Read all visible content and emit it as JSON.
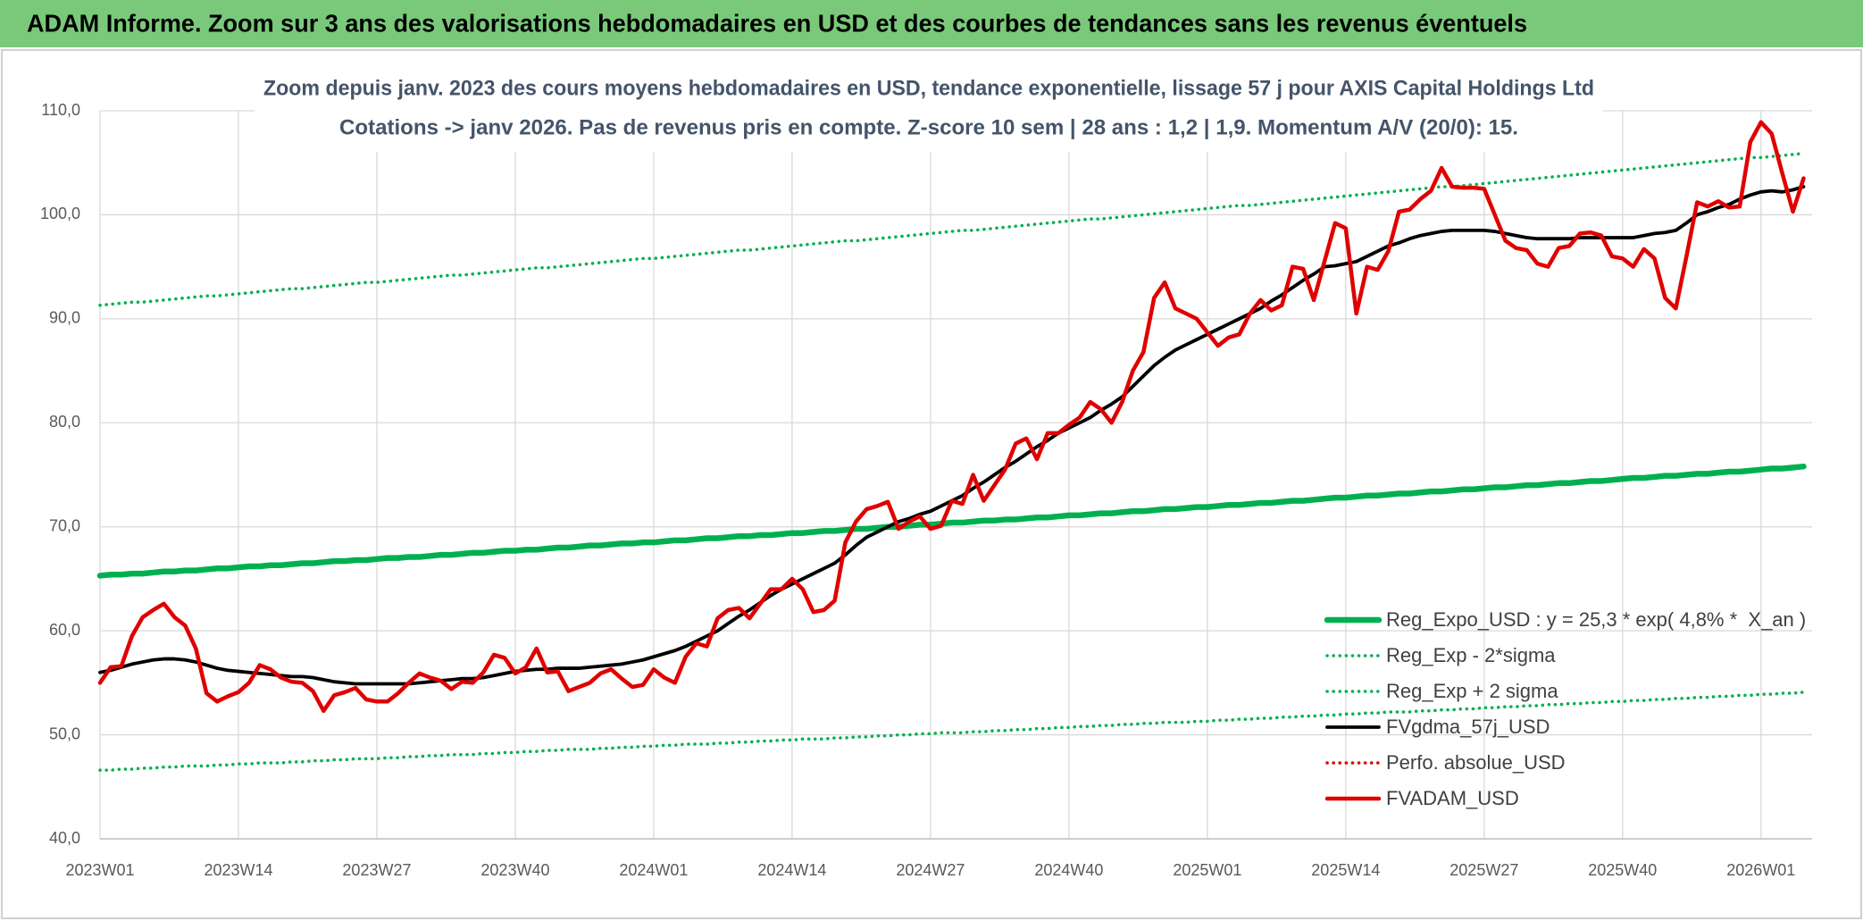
{
  "header": {
    "title": "ADAM Informe. Zoom sur 3 ans des valorisations hebdomadaires en USD et des courbes de tendances sans les revenus éventuels"
  },
  "chart_data": {
    "type": "line",
    "title": "Zoom depuis janv. 2023 des cours moyens hebdomadaires en USD, tendance exponentielle, lissage 57 j pour AXIS Capital Holdings Ltd",
    "subtitle": "Cotations -> janv 2026. Pas de revenus pris en compte. Z-score 10 sem | 28 ans : 1,2 | 1,9. Momentum A/V (20/0): 15.",
    "categories": [
      "2023W01",
      null,
      null,
      null,
      null,
      null,
      null,
      null,
      null,
      null,
      null,
      null,
      null,
      "2023W14",
      null,
      null,
      null,
      null,
      null,
      null,
      null,
      null,
      null,
      null,
      null,
      null,
      "2023W27",
      null,
      null,
      null,
      null,
      null,
      null,
      null,
      null,
      null,
      null,
      null,
      null,
      "2023W40",
      null,
      null,
      null,
      null,
      null,
      null,
      null,
      null,
      null,
      null,
      null,
      null,
      "2024W01",
      null,
      null,
      null,
      null,
      null,
      null,
      null,
      null,
      null,
      null,
      null,
      null,
      "2024W14",
      null,
      null,
      null,
      null,
      null,
      null,
      null,
      null,
      null,
      null,
      null,
      null,
      "2024W27",
      null,
      null,
      null,
      null,
      null,
      null,
      null,
      null,
      null,
      null,
      null,
      null,
      "2024W40",
      null,
      null,
      null,
      null,
      null,
      null,
      null,
      null,
      null,
      null,
      null,
      null,
      "2025W01",
      null,
      null,
      null,
      null,
      null,
      null,
      null,
      null,
      null,
      null,
      null,
      null,
      "2025W14",
      null,
      null,
      null,
      null,
      null,
      null,
      null,
      null,
      null,
      null,
      null,
      null,
      "2025W27",
      null,
      null,
      null,
      null,
      null,
      null,
      null,
      null,
      null,
      null,
      null,
      null,
      "2025W40",
      null,
      null,
      null,
      null,
      null,
      null,
      null,
      null,
      null,
      null,
      null,
      null,
      "2026W01",
      null,
      null,
      null,
      null
    ],
    "ylim": [
      40,
      110
    ],
    "yticks": [
      {
        "value": 40,
        "label": "40,0"
      },
      {
        "value": 50,
        "label": "50,0"
      },
      {
        "value": 60,
        "label": "60,0"
      },
      {
        "value": 70,
        "label": "70,0"
      },
      {
        "value": 80,
        "label": "80,0"
      },
      {
        "value": 90,
        "label": "90,0"
      },
      {
        "value": 100,
        "label": "100,0"
      },
      {
        "value": 110,
        "label": "110,0"
      }
    ],
    "grid": true,
    "legend": "lower right",
    "series": [
      {
        "name": "Reg_Expo_USD : y = 25,3 * exp( 4,8% *  X_an )",
        "color": "#00b050",
        "line_style": "thick",
        "values": [
          65.3,
          65.4,
          65.4,
          65.5,
          65.5,
          65.6,
          65.7,
          65.7,
          65.8,
          65.8,
          65.9,
          66.0,
          66.0,
          66.1,
          66.2,
          66.2,
          66.3,
          66.3,
          66.4,
          66.5,
          66.5,
          66.6,
          66.7,
          66.7,
          66.8,
          66.8,
          66.9,
          67.0,
          67.0,
          67.1,
          67.1,
          67.2,
          67.3,
          67.3,
          67.4,
          67.5,
          67.5,
          67.6,
          67.7,
          67.7,
          67.8,
          67.8,
          67.9,
          68.0,
          68.0,
          68.1,
          68.2,
          68.2,
          68.3,
          68.4,
          68.4,
          68.5,
          68.5,
          68.6,
          68.7,
          68.7,
          68.8,
          68.9,
          68.9,
          69.0,
          69.1,
          69.1,
          69.2,
          69.2,
          69.3,
          69.4,
          69.4,
          69.5,
          69.6,
          69.6,
          69.7,
          69.8,
          69.8,
          69.9,
          70.0,
          70.0,
          70.1,
          70.2,
          70.2,
          70.3,
          70.4,
          70.4,
          70.5,
          70.6,
          70.6,
          70.7,
          70.7,
          70.8,
          70.9,
          70.9,
          71.0,
          71.1,
          71.1,
          71.2,
          71.3,
          71.3,
          71.4,
          71.5,
          71.5,
          71.6,
          71.7,
          71.7,
          71.8,
          71.9,
          71.9,
          72.0,
          72.1,
          72.1,
          72.2,
          72.3,
          72.3,
          72.4,
          72.5,
          72.5,
          72.6,
          72.7,
          72.8,
          72.8,
          72.9,
          73.0,
          73.0,
          73.1,
          73.2,
          73.2,
          73.3,
          73.4,
          73.4,
          73.5,
          73.6,
          73.6,
          73.7,
          73.8,
          73.8,
          73.9,
          74.0,
          74.0,
          74.1,
          74.2,
          74.2,
          74.3,
          74.4,
          74.4,
          74.5,
          74.6,
          74.7,
          74.7,
          74.8,
          74.9,
          74.9,
          75.0,
          75.1,
          75.1,
          75.2,
          75.3,
          75.3,
          75.4,
          75.5,
          75.6,
          75.6,
          75.7,
          75.8
        ]
      },
      {
        "name": "Reg_Exp - 2*sigma",
        "color": "#00b050",
        "line_style": "dotted",
        "values": [
          46.6,
          46.6,
          46.7,
          46.7,
          46.8,
          46.8,
          46.9,
          46.9,
          47.0,
          47.0,
          47.0,
          47.1,
          47.1,
          47.2,
          47.2,
          47.3,
          47.3,
          47.3,
          47.4,
          47.4,
          47.5,
          47.5,
          47.6,
          47.6,
          47.7,
          47.7,
          47.7,
          47.8,
          47.8,
          47.9,
          47.9,
          48.0,
          48.0,
          48.1,
          48.1,
          48.1,
          48.2,
          48.2,
          48.3,
          48.3,
          48.4,
          48.4,
          48.5,
          48.5,
          48.6,
          48.6,
          48.6,
          48.7,
          48.7,
          48.8,
          48.8,
          48.9,
          48.9,
          49.0,
          49.0,
          49.1,
          49.1,
          49.1,
          49.2,
          49.2,
          49.3,
          49.3,
          49.4,
          49.4,
          49.5,
          49.5,
          49.6,
          49.6,
          49.6,
          49.7,
          49.7,
          49.8,
          49.8,
          49.9,
          49.9,
          50.0,
          50.0,
          50.1,
          50.1,
          50.2,
          50.2,
          50.2,
          50.3,
          50.3,
          50.4,
          50.4,
          50.5,
          50.5,
          50.6,
          50.6,
          50.7,
          50.7,
          50.8,
          50.8,
          50.9,
          50.9,
          51.0,
          51.0,
          51.1,
          51.1,
          51.2,
          51.2,
          51.2,
          51.3,
          51.3,
          51.4,
          51.4,
          51.5,
          51.5,
          51.6,
          51.6,
          51.7,
          51.7,
          51.8,
          51.8,
          51.9,
          51.9,
          52.0,
          52.0,
          52.1,
          52.1,
          52.2,
          52.2,
          52.2,
          52.3,
          52.3,
          52.4,
          52.4,
          52.5,
          52.5,
          52.6,
          52.6,
          52.7,
          52.7,
          52.8,
          52.8,
          52.9,
          52.9,
          53.0,
          53.0,
          53.1,
          53.1,
          53.2,
          53.2,
          53.3,
          53.3,
          53.4,
          53.4,
          53.5,
          53.5,
          53.6,
          53.6,
          53.7,
          53.7,
          53.8,
          53.8,
          53.9,
          53.9,
          54.0,
          54.0,
          54.1
        ]
      },
      {
        "name": "Reg_Exp + 2 sigma",
        "color": "#00b050",
        "line_style": "dotted",
        "values": [
          91.3,
          91.4,
          91.5,
          91.6,
          91.6,
          91.7,
          91.8,
          91.9,
          92.0,
          92.1,
          92.2,
          92.2,
          92.3,
          92.4,
          92.5,
          92.6,
          92.7,
          92.8,
          92.9,
          92.9,
          93.0,
          93.1,
          93.2,
          93.3,
          93.4,
          93.5,
          93.5,
          93.6,
          93.7,
          93.8,
          93.9,
          94.0,
          94.1,
          94.2,
          94.2,
          94.3,
          94.4,
          94.5,
          94.6,
          94.7,
          94.8,
          94.9,
          94.9,
          95.0,
          95.1,
          95.2,
          95.3,
          95.4,
          95.5,
          95.6,
          95.7,
          95.8,
          95.8,
          95.9,
          96.0,
          96.1,
          96.2,
          96.3,
          96.4,
          96.5,
          96.6,
          96.6,
          96.7,
          96.8,
          96.9,
          97.0,
          97.1,
          97.2,
          97.3,
          97.4,
          97.5,
          97.5,
          97.6,
          97.7,
          97.8,
          97.9,
          98.0,
          98.1,
          98.2,
          98.3,
          98.4,
          98.5,
          98.5,
          98.6,
          98.7,
          98.8,
          98.9,
          99.0,
          99.1,
          99.2,
          99.3,
          99.4,
          99.5,
          99.6,
          99.6,
          99.7,
          99.8,
          99.9,
          100.0,
          100.1,
          100.2,
          100.3,
          100.4,
          100.5,
          100.6,
          100.7,
          100.8,
          100.9,
          100.9,
          101.0,
          101.1,
          101.2,
          101.3,
          101.4,
          101.5,
          101.6,
          101.7,
          101.8,
          101.9,
          102.0,
          102.1,
          102.2,
          102.3,
          102.4,
          102.5,
          102.6,
          102.7,
          102.7,
          102.8,
          102.9,
          103.0,
          103.1,
          103.2,
          103.3,
          103.4,
          103.5,
          103.6,
          103.7,
          103.8,
          103.9,
          104.0,
          104.1,
          104.2,
          104.3,
          104.4,
          104.5,
          104.6,
          104.7,
          104.8,
          104.9,
          105.0,
          105.1,
          105.2,
          105.3,
          105.4,
          105.5,
          105.5,
          105.6,
          105.7,
          105.8,
          105.9
        ]
      },
      {
        "name": "FVgdma_57j_USD",
        "color": "#000000",
        "line_style": "solid",
        "values": [
          56.0,
          56.2,
          56.5,
          56.8,
          57.0,
          57.2,
          57.3,
          57.3,
          57.2,
          57.0,
          56.7,
          56.4,
          56.2,
          56.1,
          56.0,
          55.9,
          55.8,
          55.7,
          55.6,
          55.6,
          55.5,
          55.3,
          55.1,
          55.0,
          54.9,
          54.9,
          54.9,
          54.9,
          54.9,
          54.9,
          55.0,
          55.1,
          55.2,
          55.3,
          55.4,
          55.4,
          55.5,
          55.7,
          55.9,
          56.1,
          56.2,
          56.3,
          56.3,
          56.4,
          56.4,
          56.4,
          56.5,
          56.6,
          56.7,
          56.8,
          57.0,
          57.2,
          57.5,
          57.8,
          58.1,
          58.5,
          59.0,
          59.5,
          60.0,
          60.7,
          61.4,
          62.0,
          62.7,
          63.4,
          64.0,
          64.5,
          65.0,
          65.5,
          66.0,
          66.5,
          67.3,
          68.2,
          69.0,
          69.5,
          70.0,
          70.5,
          70.8,
          71.2,
          71.5,
          72.0,
          72.5,
          73.0,
          73.7,
          74.3,
          75.0,
          75.7,
          76.3,
          77.0,
          77.7,
          78.3,
          79.0,
          79.5,
          80.0,
          80.5,
          81.2,
          81.8,
          82.5,
          83.5,
          84.5,
          85.5,
          86.3,
          87.0,
          87.5,
          88.0,
          88.5,
          89.0,
          89.5,
          90.0,
          90.5,
          91.0,
          91.7,
          92.3,
          93.0,
          93.7,
          94.3,
          95.0,
          95.1,
          95.3,
          95.5,
          96.0,
          96.5,
          97.0,
          97.3,
          97.7,
          98.0,
          98.2,
          98.4,
          98.5,
          98.5,
          98.5,
          98.5,
          98.4,
          98.2,
          98.0,
          97.8,
          97.7,
          97.7,
          97.7,
          97.7,
          97.8,
          97.8,
          97.8,
          97.8,
          97.8,
          97.8,
          98.0,
          98.2,
          98.3,
          98.5,
          99.2,
          100.0,
          100.3,
          100.7,
          101.0,
          101.5,
          101.9,
          102.2,
          102.3,
          102.2,
          102.4,
          102.7
        ]
      },
      {
        "name": "Perfo. absolue_USD",
        "color": "#e00000",
        "line_style": "dotted",
        "values": [
          null,
          null,
          null,
          null,
          null,
          null,
          null,
          null,
          null,
          null,
          null,
          null,
          null,
          null,
          null,
          null,
          null,
          null,
          null,
          null,
          null,
          null,
          null,
          null,
          null,
          null,
          null,
          null,
          null,
          null,
          null,
          null,
          null,
          null,
          null,
          null,
          null,
          null,
          null,
          null,
          null,
          null,
          null,
          null,
          null,
          null,
          null,
          null,
          null,
          null,
          null,
          null,
          null,
          null,
          null,
          null,
          null,
          null,
          null,
          null,
          null,
          null,
          null,
          null,
          null,
          null,
          null,
          null,
          null,
          null,
          null,
          null,
          null,
          null,
          null,
          null,
          null,
          null,
          null,
          null,
          null,
          null,
          null,
          null,
          null,
          null,
          null,
          null,
          null,
          null,
          null,
          null,
          null,
          null,
          null,
          null,
          null,
          null,
          null,
          null,
          null,
          null,
          null,
          null,
          null,
          null,
          null,
          null,
          null,
          null,
          null,
          null,
          null,
          null,
          null,
          null,
          null,
          null,
          null,
          null,
          null,
          null,
          null,
          null,
          null,
          null,
          null,
          null,
          null,
          null,
          null,
          null,
          null,
          null,
          null,
          null,
          null,
          null,
          null,
          null,
          null,
          null,
          null,
          null,
          null,
          null,
          null,
          null,
          null,
          null,
          null,
          null,
          null,
          null,
          null,
          null,
          null,
          null,
          null,
          null,
          null
        ]
      },
      {
        "name": "FVADAM_USD",
        "color": "#e00000",
        "line_style": "thick",
        "values": [
          55.0,
          56.5,
          56.6,
          59.5,
          61.3,
          62.0,
          62.6,
          61.3,
          60.5,
          58.3,
          54.0,
          53.2,
          53.7,
          54.1,
          55.0,
          56.7,
          56.3,
          55.5,
          55.1,
          55.0,
          54.2,
          52.3,
          53.8,
          54.1,
          54.5,
          53.4,
          53.2,
          53.2,
          54.0,
          55.0,
          55.9,
          55.5,
          55.2,
          54.4,
          55.1,
          55.0,
          56.0,
          57.7,
          57.4,
          55.9,
          56.5,
          58.3,
          56.0,
          56.1,
          54.2,
          54.6,
          55.0,
          55.9,
          56.3,
          55.4,
          54.6,
          54.8,
          56.3,
          55.5,
          55.0,
          57.5,
          58.8,
          58.5,
          61.2,
          62.0,
          62.2,
          61.2,
          62.6,
          64.0,
          64.0,
          65.0,
          64.0,
          61.8,
          62.0,
          62.9,
          68.5,
          70.5,
          71.7,
          72.0,
          72.4,
          69.8,
          70.5,
          71.0,
          69.8,
          70.1,
          72.5,
          72.2,
          75.0,
          72.5,
          74.0,
          75.5,
          78.0,
          78.5,
          76.5,
          79.0,
          79.0,
          79.8,
          80.5,
          82.0,
          81.3,
          80.0,
          82.0,
          85.0,
          86.8,
          92.0,
          93.5,
          91.0,
          90.5,
          90.0,
          88.7,
          87.4,
          88.2,
          88.5,
          90.5,
          91.8,
          90.8,
          91.3,
          95.0,
          94.8,
          91.8,
          95.5,
          99.2,
          98.7,
          90.5,
          95.0,
          94.7,
          96.5,
          100.3,
          100.5,
          101.5,
          102.3,
          104.5,
          102.7,
          102.6,
          102.6,
          102.5,
          100.0,
          97.5,
          96.8,
          96.6,
          95.3,
          95.0,
          96.8,
          97.0,
          98.2,
          98.3,
          98.0,
          96.0,
          95.8,
          95.0,
          96.7,
          95.8,
          92.0,
          91.0,
          96.0,
          101.2,
          100.8,
          101.3,
          100.7,
          100.8,
          107.0,
          108.9,
          107.8,
          104.0,
          100.3,
          103.5
        ]
      }
    ]
  }
}
